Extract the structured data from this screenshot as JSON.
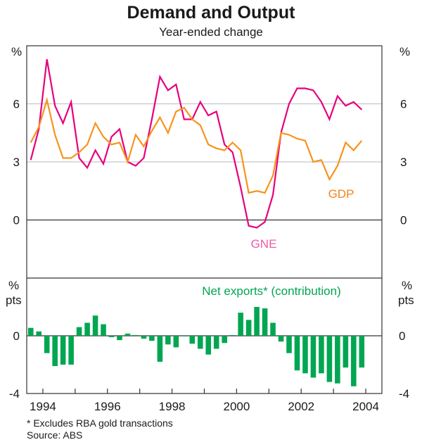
{
  "chart_data": [
    {
      "type": "line",
      "title": "Demand and Output",
      "subtitle": "Year-ended change",
      "ylabel_left": "%",
      "ylabel_right": "%",
      "ylim": [
        -3,
        9
      ],
      "yticks": [
        0,
        3,
        6
      ],
      "ytick_labels": [
        "0",
        "3",
        "6"
      ],
      "grid": true,
      "x_start": 1993.5,
      "x_step": 0.25,
      "series": [
        {
          "name": "GNE",
          "color": "#e6007e",
          "label_color": "#f05aa5",
          "values": [
            3.1,
            4.7,
            8.3,
            5.9,
            5.0,
            6.1,
            3.2,
            2.7,
            3.6,
            2.9,
            4.3,
            4.7,
            3.0,
            2.8,
            3.2,
            5.2,
            7.4,
            6.7,
            7.0,
            5.2,
            5.2,
            6.1,
            5.4,
            5.6,
            3.9,
            3.5,
            1.7,
            -0.3,
            -0.4,
            -0.1,
            1.3,
            4.5,
            6.0,
            6.8,
            6.8,
            6.7,
            6.1,
            5.2,
            6.4,
            5.9,
            6.1,
            5.7
          ],
          "label": "GNE"
        },
        {
          "name": "GDP",
          "color": "#f7941d",
          "label_color": "#f58220",
          "values": [
            4.0,
            4.8,
            6.2,
            4.4,
            3.2,
            3.2,
            3.5,
            3.9,
            5.0,
            4.3,
            3.9,
            4.0,
            3.0,
            4.4,
            3.8,
            4.6,
            5.3,
            4.5,
            5.6,
            5.8,
            5.2,
            4.9,
            3.9,
            3.7,
            3.6,
            4.0,
            3.6,
            1.4,
            1.5,
            1.4,
            2.3,
            4.5,
            4.4,
            4.2,
            4.1,
            3.0,
            3.1,
            2.1,
            2.8,
            4.0,
            3.6,
            4.1
          ],
          "label": "GDP"
        }
      ]
    },
    {
      "type": "bar",
      "title": "Net exports* (contribution)",
      "title_color": "#00a651",
      "ylabel_left": "% pts",
      "ylabel_right": "% pts",
      "ylim": [
        -4,
        4
      ],
      "yticks": [
        -4,
        0
      ],
      "ytick_labels": [
        "-4",
        "0"
      ],
      "x_start": 1993.5,
      "x_step": 0.25,
      "color": "#00a651",
      "values": [
        0.55,
        0.3,
        -1.2,
        -2.1,
        -2.0,
        -2.0,
        0.6,
        0.9,
        1.4,
        0.8,
        -0.1,
        -0.3,
        0.15,
        0.05,
        -0.2,
        -0.35,
        -1.8,
        -0.6,
        -0.8,
        0.0,
        -0.55,
        -0.9,
        -1.3,
        -0.9,
        -0.5,
        0.05,
        1.6,
        1.1,
        2.0,
        1.9,
        0.9,
        -0.4,
        -1.2,
        -2.4,
        -2.6,
        -2.9,
        -2.6,
        -3.2,
        -3.3,
        -2.2,
        -3.5,
        -2.2
      ],
      "series_name": "Net exports"
    }
  ],
  "xaxis": {
    "tick_labels": [
      "1994",
      "1996",
      "1998",
      "2000",
      "2002",
      "2004"
    ],
    "tick_years": [
      1994,
      1996,
      1998,
      2000,
      2002,
      2004
    ],
    "range": [
      1993.5,
      2004.5
    ]
  },
  "footnotes": {
    "note": "*   Excludes RBA gold transactions",
    "source": "Source: ABS"
  },
  "top_panel": {
    "left_unit": "%",
    "right_unit": "%"
  },
  "bottom_panel": {
    "unit_line1": "%",
    "unit_line2": "pts"
  }
}
